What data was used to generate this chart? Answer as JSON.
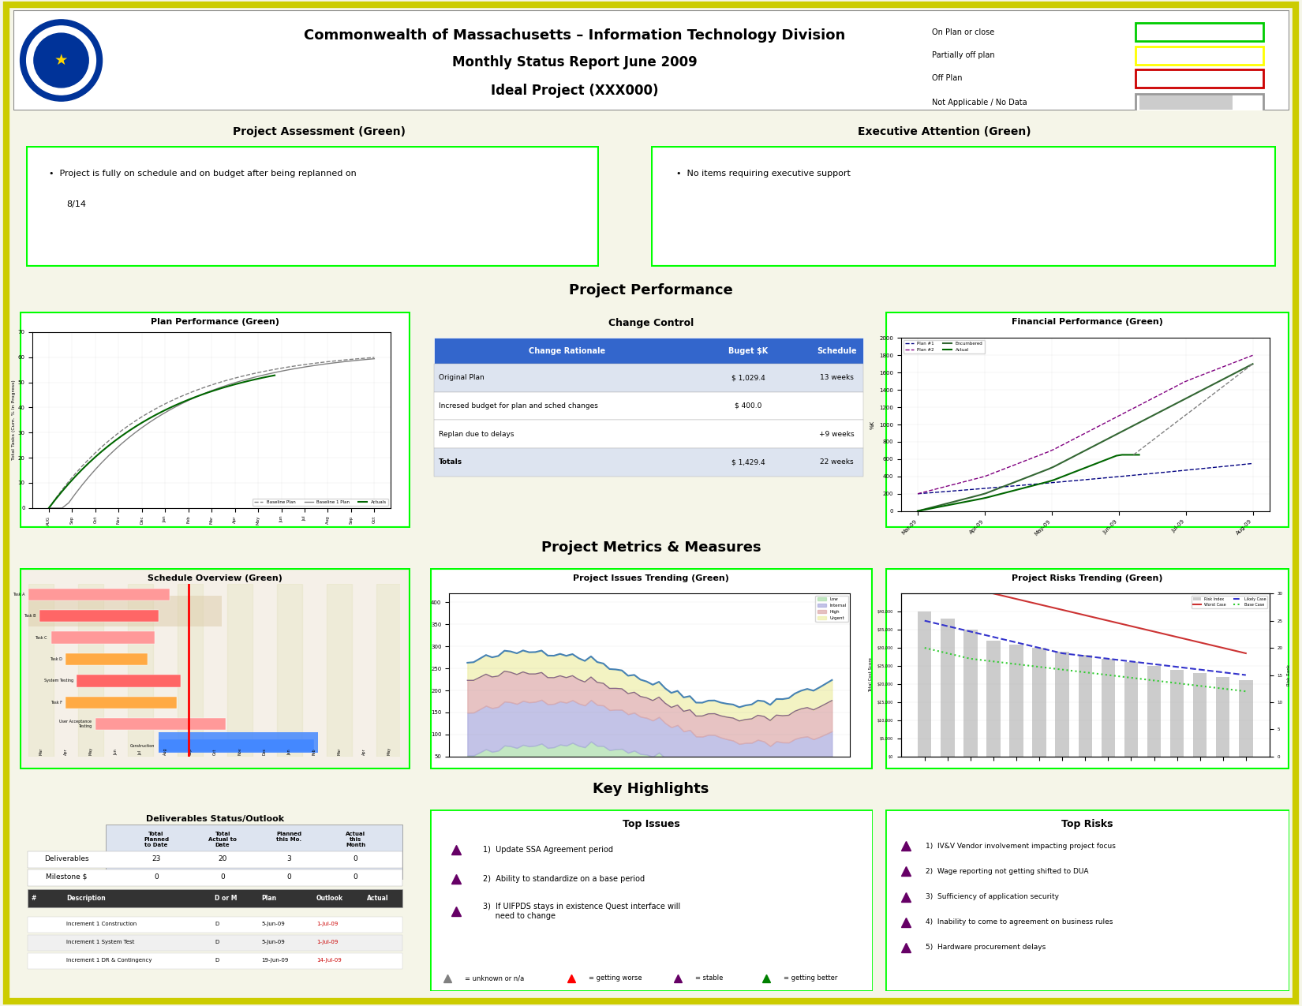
{
  "title_line1": "Commonwealth of Massachusetts – Information Technology Division",
  "title_line2": "Monthly Status Report June 2009",
  "title_line3": "Ideal Project (XXX000)",
  "bg_color": "#f5f5e8",
  "outer_border_color": "#cccc00",
  "header_bg": "#ffffff",
  "legend_items": [
    {
      "label": "On Plan or close",
      "color": "#00cc00"
    },
    {
      "label": "Partially off plan",
      "color": "#ffff00"
    },
    {
      "label": "Off Plan",
      "color": "#cc0000"
    },
    {
      "label": "Not Applicable / No Data",
      "color": "#cccccc"
    }
  ],
  "section_header_color": "#b0b8d0",
  "green_border": "#00ff00",
  "section1_title": "Project Assessment (Green)",
  "section2_title": "Executive Attention (Green)",
  "perf_header": "Project Performance",
  "plan_perf_title": "Plan Performance (Green)",
  "change_ctrl_title": "Change Control",
  "fin_perf_title": "Financial Performance (Green)",
  "metrics_header": "Project Metrics & Measures",
  "schedule_title": "Schedule Overview (Green)",
  "issues_title": "Project Issues Trending (Green)",
  "risks_title": "Project Risks Trending (Green)",
  "highlights_header": "Key Highlights",
  "top_issues_title": "Top Issues",
  "top_risks_title": "Top Risks",
  "deliverables_title": "Deliverables Status/Outlook",
  "top_issues": [
    "1)  Update SSA Agreement period",
    "2)  Ability to standardize on a base period",
    "3)  If UIFPDS stays in existence Quest interface will\n     need to change"
  ],
  "top_risks": [
    "1)  IV&V Vendor involvement impacting project focus",
    "2)  Wage reporting not getting shifted to DUA",
    "3)  Sufficiency of application security",
    "4)  Inability to come to agreement on business rules",
    "5)  Hardware procurement delays"
  ],
  "change_control_headers": [
    "Change Rationale",
    "Buget $K",
    "Schedule"
  ],
  "change_control_rows": [
    [
      "Original Plan",
      "$ 1,029.4",
      "13 weeks"
    ],
    [
      "Incresed budget for plan and sched changes",
      "$ 400.0",
      ""
    ],
    [
      "Replan due to delays",
      "",
      "+9 weeks"
    ],
    [
      "Totals",
      "$ 1,429.4",
      "22 weeks"
    ]
  ]
}
